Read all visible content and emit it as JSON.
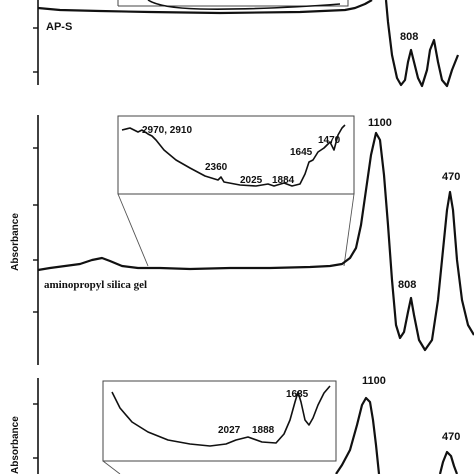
{
  "chart_data": [
    {
      "type": "line",
      "title": "",
      "xlabel": "",
      "ylabel": "",
      "sample_label": "AP-S",
      "peak_labels": [
        "808"
      ],
      "grid": false
    },
    {
      "type": "line",
      "title": "",
      "xlabel": "",
      "ylabel": "Absorbance",
      "sample_label": "aminopropyl silica gel",
      "peak_labels": [
        "1100",
        "470",
        "808"
      ],
      "inset_labels": [
        "2970, 2910",
        "2360",
        "2025",
        "1884",
        "1645",
        "1470"
      ],
      "grid": false
    },
    {
      "type": "line",
      "title": "",
      "xlabel": "",
      "ylabel": "Absorbance",
      "sample_label": "",
      "peak_labels": [
        "1100",
        "470"
      ],
      "inset_labels": [
        "1635",
        "2027",
        "1888"
      ],
      "grid": false
    }
  ]
}
